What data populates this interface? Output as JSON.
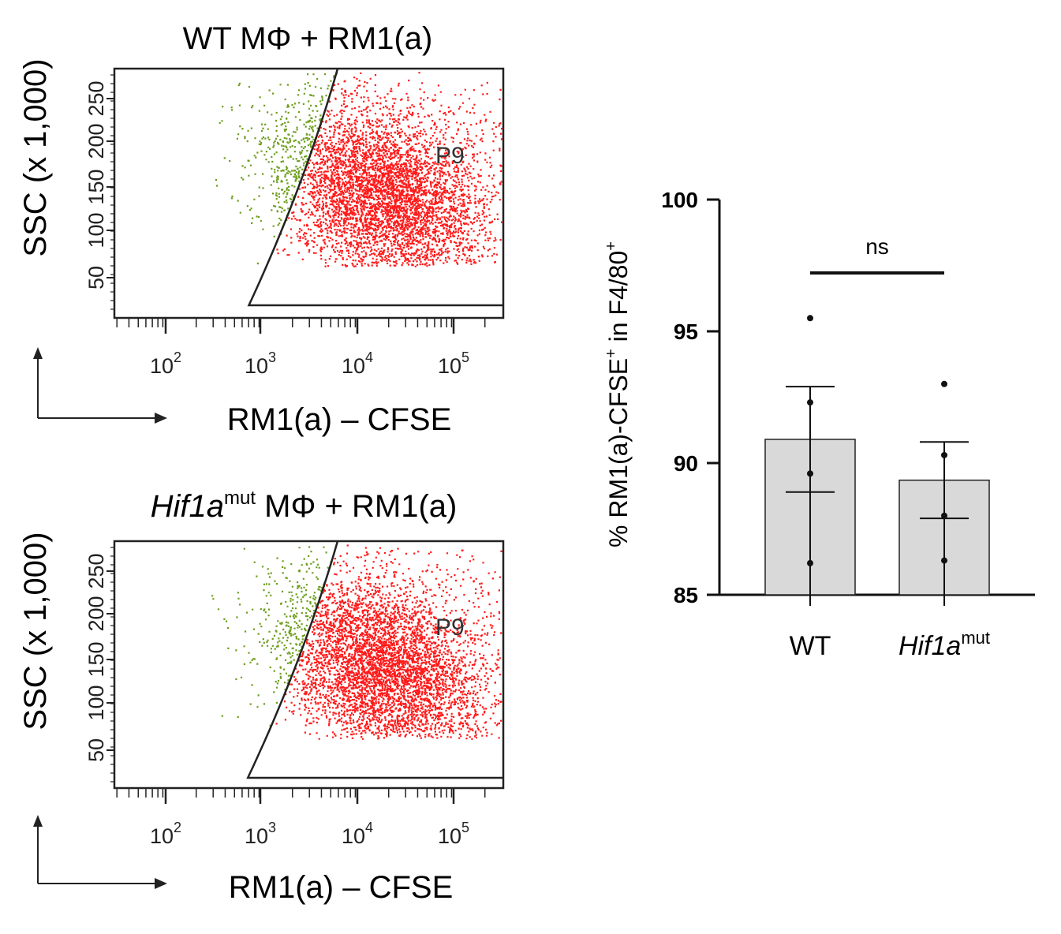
{
  "flow_panels": [
    {
      "title_prefix": "WT",
      "title_prefix_italic": false,
      "title_sup": "",
      "title_suffix": " MΦ + RM1(a)",
      "ylabel": "SSC (x 1,000)",
      "yticks": [
        "50",
        "100",
        "150",
        "200",
        "250"
      ],
      "xtick_base": "10",
      "xticks_exp": [
        "2",
        "3",
        "4",
        "5"
      ],
      "xlabel": "RM1(a) – CFSE",
      "gate_label": "P9",
      "colors": {
        "gated": "#ff1a1a",
        "ungated": "#6e9e1e"
      }
    },
    {
      "title_prefix": "Hif1a",
      "title_prefix_italic": true,
      "title_sup": "mut",
      "title_suffix": " MΦ + RM1(a)",
      "ylabel": "SSC (x 1,000)",
      "yticks": [
        "50",
        "100",
        "150",
        "200",
        "250"
      ],
      "xtick_base": "10",
      "xticks_exp": [
        "2",
        "3",
        "4",
        "5"
      ],
      "xlabel": "RM1(a) – CFSE",
      "gate_label": "P9",
      "colors": {
        "gated": "#ff1a1a",
        "ungated": "#6e9e1e"
      }
    }
  ],
  "chart_data": {
    "type": "bar",
    "ylabel": {
      "prefix": "% RM1(a)-CFSE",
      "sup1": "+",
      "mid": " in F4/80",
      "sup2": "+"
    },
    "ylim": [
      85,
      100
    ],
    "yticks": [
      "85",
      "90",
      "95",
      "100"
    ],
    "categories": [
      {
        "label": "WT",
        "italic": false,
        "sup": ""
      },
      {
        "label": "Hif1a",
        "italic": true,
        "sup": "mut"
      }
    ],
    "means": [
      90.9,
      89.35
    ],
    "sem": [
      2.0,
      1.45
    ],
    "points": [
      [
        95.5,
        92.3,
        89.6,
        86.2
      ],
      [
        93.0,
        90.3,
        88.0,
        86.3
      ]
    ],
    "annotation": {
      "text": "ns",
      "between": [
        0,
        1
      ]
    },
    "colors": {
      "bar": "#d9d9d9",
      "edge": "#222222",
      "points": "#111111"
    }
  }
}
